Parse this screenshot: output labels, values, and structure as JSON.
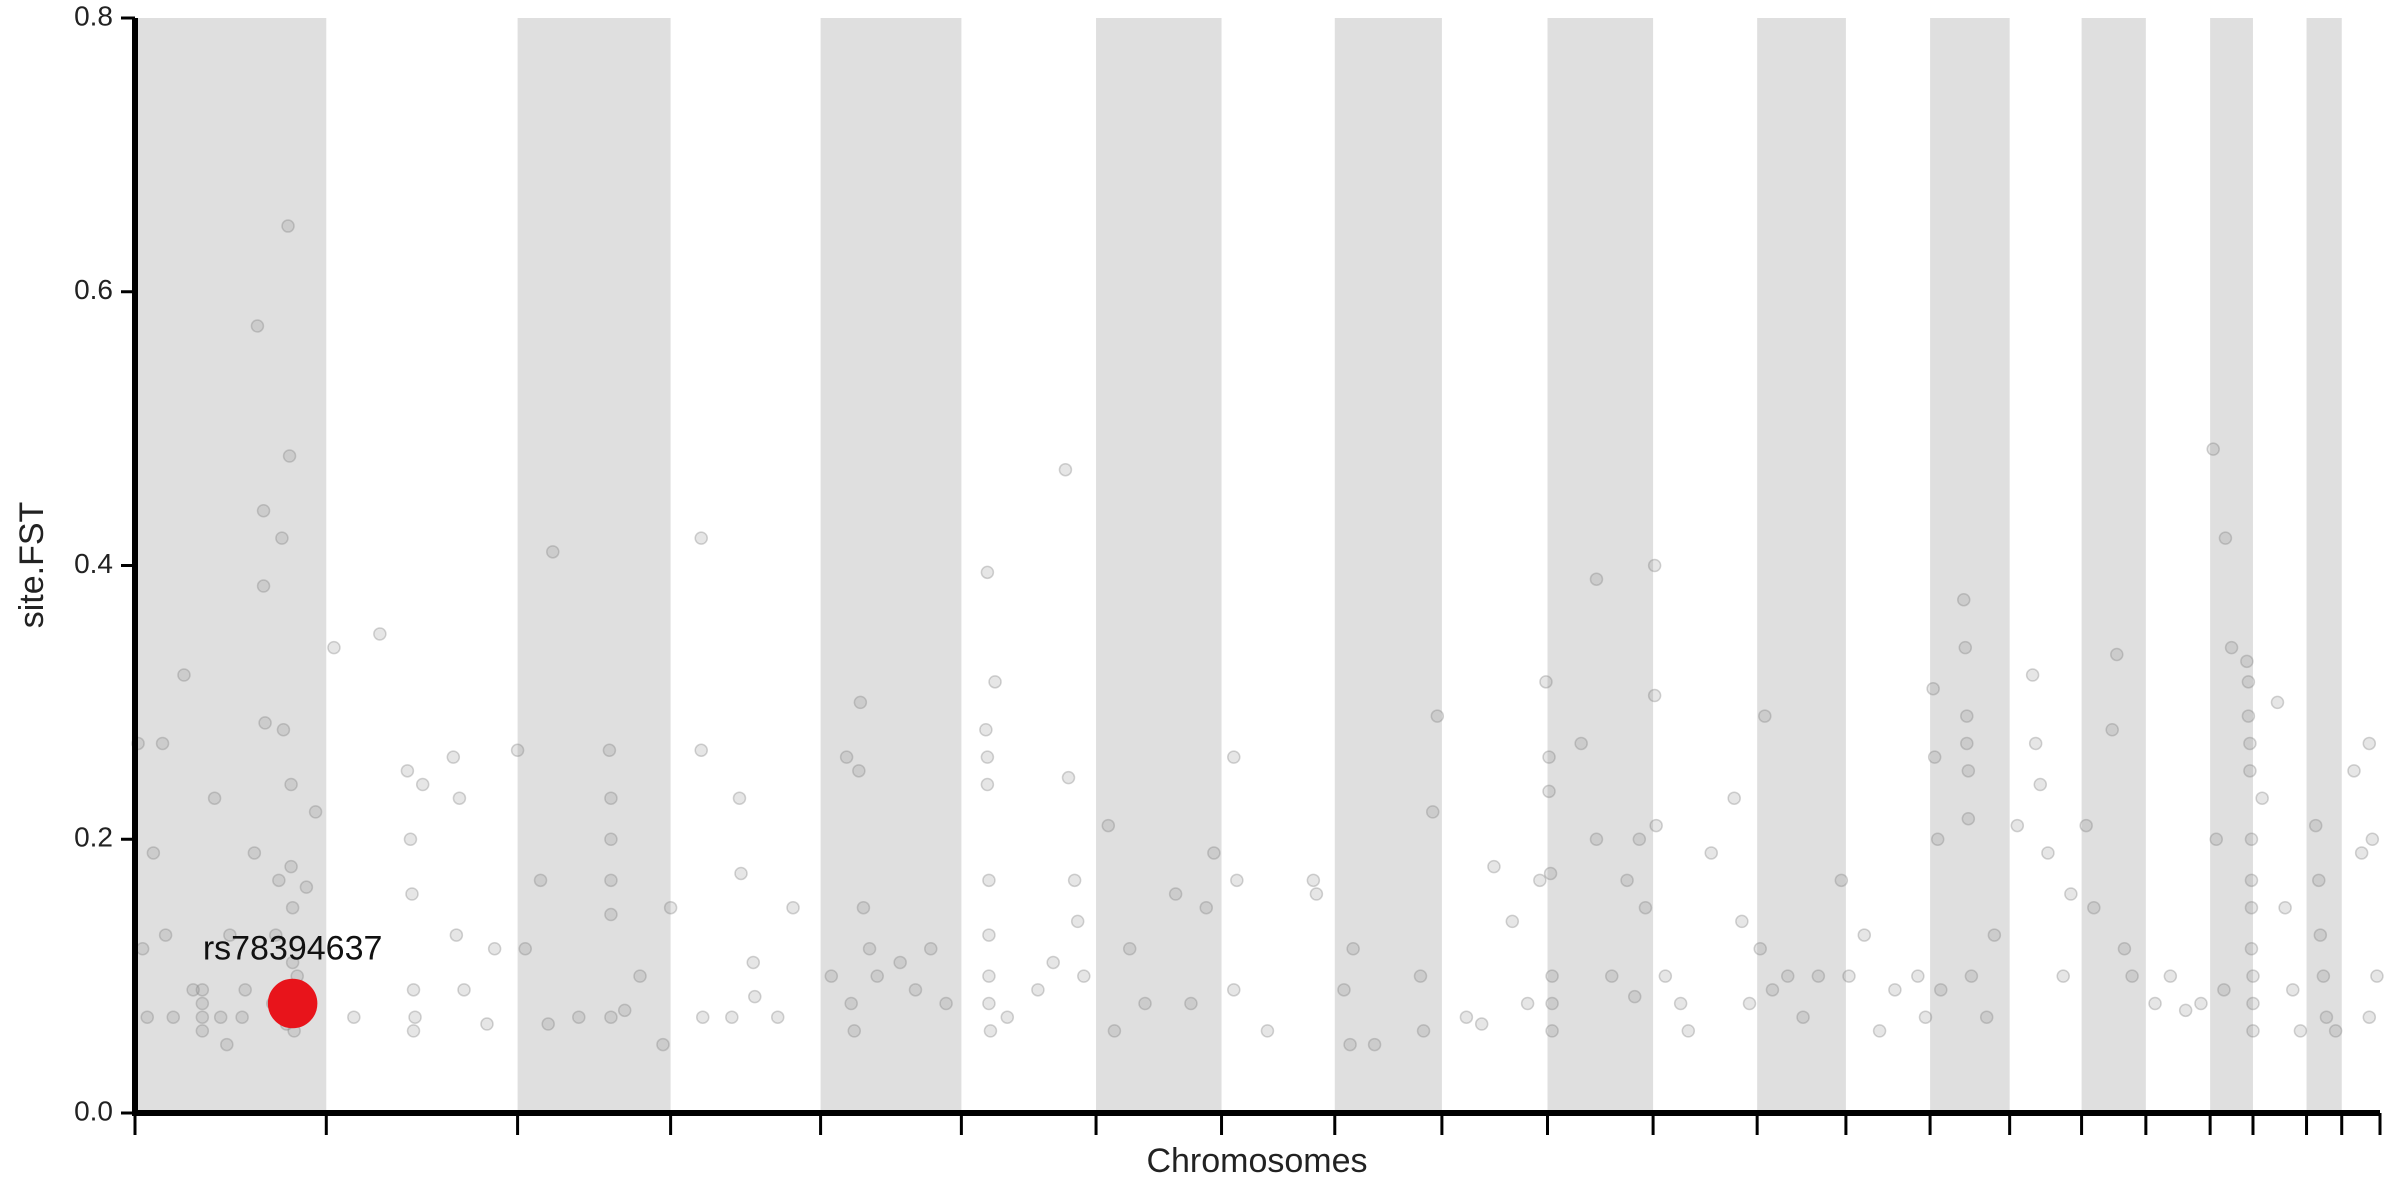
{
  "chart_data": {
    "type": "scatter",
    "xlabel": "Chromosomes",
    "ylabel": "site.FST",
    "xlim": [
      0,
      1467
    ],
    "ylim": [
      0,
      0.8
    ],
    "xticks": [
      0,
      125,
      250,
      350,
      448,
      540,
      628,
      710,
      784,
      854,
      923,
      992,
      1060,
      1118,
      1173,
      1225,
      1272,
      1314,
      1356,
      1384,
      1419,
      1442,
      1467
    ],
    "yticks": [
      {
        "value": 0,
        "label": "0.0"
      },
      0.2,
      0.4,
      0.6,
      0.8
    ],
    "band_color": "#dfdfdf",
    "series": [
      {
        "color": "#808080",
        "x": [
          2,
          5,
          8,
          12,
          18,
          20,
          25,
          32,
          38,
          44,
          44,
          44,
          44,
          52,
          56,
          62,
          72,
          78,
          80,
          84,
          84,
          85,
          90,
          92,
          94,
          96,
          97,
          99,
          100,
          101,
          102,
          102,
          103,
          103,
          104,
          112,
          118,
          106,
          60,
          70,
          130,
          160,
          143,
          178,
          180,
          181,
          182,
          183,
          182,
          188,
          210,
          208,
          212,
          215,
          230,
          235,
          250,
          255,
          265,
          273,
          270,
          290,
          310,
          311,
          311,
          311,
          311,
          311,
          320,
          330,
          345,
          350,
          370,
          370,
          371,
          390,
          395,
          396,
          404,
          405,
          420,
          430,
          455,
          465,
          468,
          470,
          474,
          473,
          476,
          480,
          485,
          500,
          510,
          520,
          530,
          557,
          556,
          557,
          557,
          558,
          558,
          558,
          558,
          559,
          562,
          570,
          590,
          600,
          608,
          610,
          614,
          616,
          620,
          636,
          640,
          650,
          660,
          680,
          690,
          700,
          705,
          718,
          720,
          718,
          740,
          770,
          772,
          790,
          794,
          796,
          810,
          840,
          842,
          848,
          851,
          870,
          880,
          888,
          900,
          910,
          918,
          922,
          924,
          924,
          925,
          926,
          926,
          926,
          945,
          955,
          955,
          965,
          975,
          980,
          983,
          987,
          993,
          993,
          994,
          1000,
          1010,
          1015,
          1030,
          1045,
          1050,
          1055,
          1065,
          1062,
          1070,
          1080,
          1090,
          1100,
          1115,
          1120,
          1130,
          1140,
          1150,
          1165,
          1170,
          1175,
          1176,
          1178,
          1180,
          1195,
          1196,
          1197,
          1197,
          1198,
          1198,
          1200,
          1210,
          1215,
          1230,
          1240,
          1242,
          1245,
          1250,
          1260,
          1265,
          1275,
          1280,
          1292,
          1295,
          1300,
          1305,
          1320,
          1330,
          1340,
          1350,
          1358,
          1366,
          1370,
          1380,
          1381,
          1381,
          1382,
          1382,
          1383,
          1383,
          1383,
          1383,
          1384,
          1384,
          1384,
          1360,
          1365,
          1390,
          1400,
          1405,
          1410,
          1415,
          1425,
          1427,
          1428,
          1430,
          1432,
          1438,
          1450,
          1455,
          1460,
          1462,
          1465,
          1460
        ],
        "values": [
          0.27,
          0.12,
          0.07,
          0.19,
          0.27,
          0.13,
          0.07,
          0.32,
          0.09,
          0.09,
          0.07,
          0.06,
          0.08,
          0.23,
          0.07,
          0.13,
          0.09,
          0.19,
          0.575,
          0.44,
          0.385,
          0.285,
          0.08,
          0.13,
          0.17,
          0.42,
          0.28,
          0.065,
          0.648,
          0.48,
          0.24,
          0.18,
          0.15,
          0.11,
          0.06,
          0.165,
          0.22,
          0.1,
          0.05,
          0.07,
          0.34,
          0.35,
          0.07,
          0.25,
          0.2,
          0.16,
          0.09,
          0.07,
          0.06,
          0.24,
          0.13,
          0.26,
          0.23,
          0.09,
          0.065,
          0.12,
          0.265,
          0.12,
          0.17,
          0.41,
          0.065,
          0.07,
          0.265,
          0.23,
          0.2,
          0.17,
          0.145,
          0.07,
          0.075,
          0.1,
          0.05,
          0.15,
          0.42,
          0.265,
          0.07,
          0.07,
          0.23,
          0.175,
          0.11,
          0.085,
          0.07,
          0.15,
          0.1,
          0.26,
          0.08,
          0.06,
          0.3,
          0.25,
          0.15,
          0.12,
          0.1,
          0.11,
          0.09,
          0.12,
          0.08,
          0.395,
          0.28,
          0.26,
          0.24,
          0.17,
          0.13,
          0.1,
          0.08,
          0.06,
          0.315,
          0.07,
          0.09,
          0.11,
          0.47,
          0.245,
          0.17,
          0.14,
          0.1,
          0.21,
          0.06,
          0.12,
          0.08,
          0.16,
          0.08,
          0.15,
          0.19,
          0.26,
          0.17,
          0.09,
          0.06,
          0.17,
          0.16,
          0.09,
          0.05,
          0.12,
          0.05,
          0.1,
          0.06,
          0.22,
          0.29,
          0.07,
          0.065,
          0.18,
          0.14,
          0.08,
          0.17,
          0.315,
          0.26,
          0.235,
          0.175,
          0.1,
          0.08,
          0.06,
          0.27,
          0.39,
          0.2,
          0.1,
          0.17,
          0.085,
          0.2,
          0.15,
          0.4,
          0.305,
          0.21,
          0.1,
          0.08,
          0.06,
          0.19,
          0.23,
          0.14,
          0.08,
          0.29,
          0.12,
          0.09,
          0.1,
          0.07,
          0.1,
          0.17,
          0.1,
          0.13,
          0.06,
          0.09,
          0.1,
          0.07,
          0.31,
          0.26,
          0.2,
          0.09,
          0.375,
          0.34,
          0.29,
          0.27,
          0.25,
          0.215,
          0.1,
          0.07,
          0.13,
          0.21,
          0.32,
          0.27,
          0.24,
          0.19,
          0.1,
          0.16,
          0.21,
          0.15,
          0.28,
          0.335,
          0.12,
          0.1,
          0.08,
          0.1,
          0.075,
          0.08,
          0.485,
          0.42,
          0.34,
          0.33,
          0.315,
          0.29,
          0.27,
          0.25,
          0.2,
          0.17,
          0.15,
          0.12,
          0.1,
          0.08,
          0.06,
          0.2,
          0.09,
          0.23,
          0.3,
          0.15,
          0.09,
          0.06,
          0.21,
          0.17,
          0.13,
          0.1,
          0.07,
          0.06,
          0.25,
          0.19,
          0.27,
          0.2,
          0.1,
          0.07
        ]
      },
      {
        "name": "rs78394637",
        "color": "#e8141b",
        "x": [
          103
        ],
        "values": [
          0.08
        ]
      }
    ]
  }
}
